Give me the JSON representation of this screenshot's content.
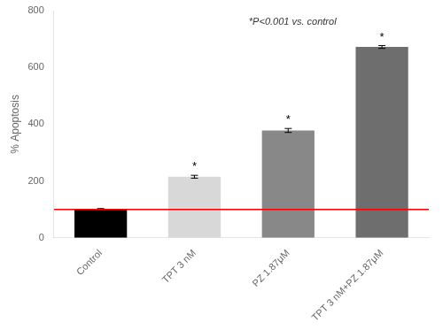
{
  "chart_data": {
    "type": "bar",
    "categories": [
      "Control",
      "TPT 3 nM",
      "PZ 1.87μM",
      "TPT 3 nM+PZ 1.87μM"
    ],
    "values": [
      100,
      215,
      378,
      672
    ],
    "errors": [
      3,
      5,
      7,
      5
    ],
    "colors": [
      "#000000",
      "#d8d8d8",
      "#888888",
      "#6e6e6e"
    ],
    "ylabel": "% Apoptosis",
    "ylim": [
      0,
      800
    ],
    "yticks": [
      0,
      200,
      400,
      600,
      800
    ],
    "grid": false,
    "reference_lines": [
      {
        "value": 100,
        "color": "red"
      }
    ],
    "annotations": [
      {
        "text": "*P<0.001 vs. control"
      },
      {
        "text": "*",
        "category": "TPT 3 nM"
      },
      {
        "text": "*",
        "category": "PZ 1.87μM"
      },
      {
        "text": "*",
        "category": "TPT 3 nM+PZ 1.87μM"
      }
    ]
  }
}
